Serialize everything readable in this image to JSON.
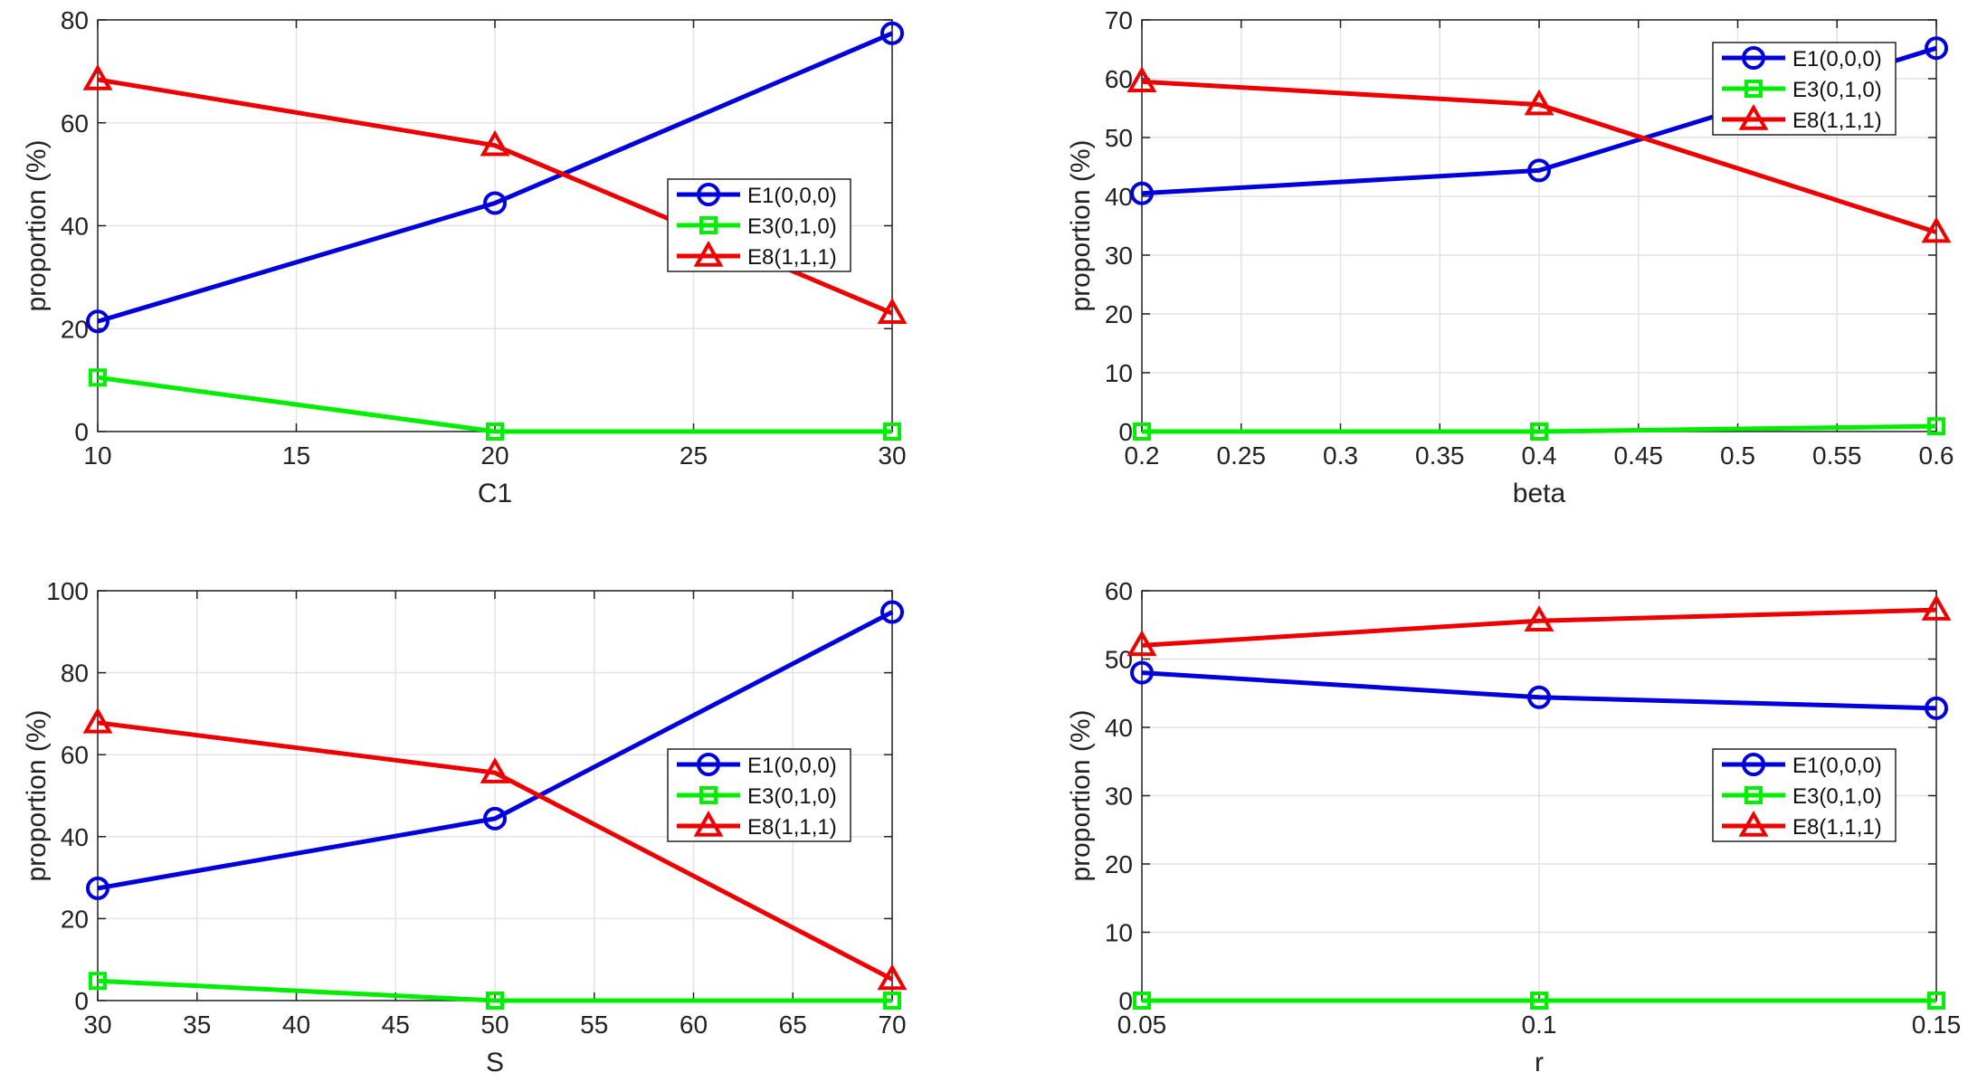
{
  "colors": {
    "E1": "#0000dd",
    "E3": "#00ee00",
    "E8": "#ee0000",
    "grid": "#e3e3e3",
    "axis": "#222222"
  },
  "chart_data": [
    {
      "type": "line",
      "xlabel": "C1",
      "ylabel": "proportion (%)",
      "x": [
        10,
        20,
        30
      ],
      "xlim": [
        10,
        30
      ],
      "ylim": [
        0,
        80
      ],
      "xticks": [
        10,
        15,
        20,
        25,
        30
      ],
      "xtick_labels": [
        "10",
        "15",
        "20",
        "25",
        "30"
      ],
      "yticks": [
        0,
        20,
        40,
        60,
        80
      ],
      "ytick_labels": [
        "0",
        "20",
        "40",
        "60",
        "80"
      ],
      "legend_position": "middle-right",
      "grid": true,
      "series": [
        {
          "name": "E1(0,0,0)",
          "key": "E1",
          "marker": "circle",
          "values": [
            21.4,
            44.4,
            77.4
          ]
        },
        {
          "name": "E3(0,1,0)",
          "key": "E3",
          "marker": "square",
          "values": [
            10.5,
            0,
            0
          ]
        },
        {
          "name": "E8(1,1,1)",
          "key": "E8",
          "marker": "triangle",
          "values": [
            68.4,
            55.6,
            23.0
          ]
        }
      ]
    },
    {
      "type": "line",
      "xlabel": "beta",
      "ylabel": "proportion (%)",
      "x": [
        0.2,
        0.4,
        0.6
      ],
      "xlim": [
        0.2,
        0.6
      ],
      "ylim": [
        0,
        70
      ],
      "xticks": [
        0.2,
        0.25,
        0.3,
        0.35,
        0.4,
        0.45,
        0.5,
        0.55,
        0.6
      ],
      "xtick_labels": [
        "0.2",
        "0.25",
        "0.3",
        "0.35",
        "0.4",
        "0.45",
        "0.5",
        "0.55",
        "0.6"
      ],
      "yticks": [
        0,
        10,
        20,
        30,
        40,
        50,
        60,
        70
      ],
      "ytick_labels": [
        "0",
        "10",
        "20",
        "30",
        "40",
        "50",
        "60",
        "70"
      ],
      "legend_position": "top-right",
      "grid": true,
      "series": [
        {
          "name": "E1(0,0,0)",
          "key": "E1",
          "marker": "circle",
          "values": [
            40.5,
            44.4,
            65.2
          ]
        },
        {
          "name": "E3(0,1,0)",
          "key": "E3",
          "marker": "square",
          "values": [
            0,
            0,
            0.9
          ]
        },
        {
          "name": "E8(1,1,1)",
          "key": "E8",
          "marker": "triangle",
          "values": [
            59.5,
            55.6,
            33.9
          ]
        }
      ]
    },
    {
      "type": "line",
      "xlabel": "S",
      "ylabel": "proportion (%)",
      "x": [
        30,
        50,
        70
      ],
      "xlim": [
        30,
        70
      ],
      "ylim": [
        0,
        100
      ],
      "xticks": [
        30,
        35,
        40,
        45,
        50,
        55,
        60,
        65,
        70
      ],
      "xtick_labels": [
        "30",
        "35",
        "40",
        "45",
        "50",
        "55",
        "60",
        "65",
        "70"
      ],
      "yticks": [
        0,
        20,
        40,
        60,
        80,
        100
      ],
      "ytick_labels": [
        "0",
        "20",
        "40",
        "60",
        "80",
        "100"
      ],
      "legend_position": "middle-right",
      "grid": true,
      "series": [
        {
          "name": "E1(0,0,0)",
          "key": "E1",
          "marker": "circle",
          "values": [
            27.4,
            44.4,
            94.8
          ]
        },
        {
          "name": "E3(0,1,0)",
          "key": "E3",
          "marker": "square",
          "values": [
            4.8,
            0,
            0
          ]
        },
        {
          "name": "E8(1,1,1)",
          "key": "E8",
          "marker": "triangle",
          "values": [
            67.8,
            55.6,
            5.2
          ]
        }
      ]
    },
    {
      "type": "line",
      "xlabel": "r",
      "ylabel": "proportion (%)",
      "x": [
        0.05,
        0.1,
        0.15
      ],
      "xlim": [
        0.05,
        0.15
      ],
      "ylim": [
        0,
        60
      ],
      "xticks": [
        0.05,
        0.1,
        0.15
      ],
      "xtick_labels": [
        "0.05",
        "0.1",
        "0.15"
      ],
      "yticks": [
        0,
        10,
        20,
        30,
        40,
        50,
        60
      ],
      "ytick_labels": [
        "0",
        "10",
        "20",
        "30",
        "40",
        "50",
        "60"
      ],
      "legend_position": "middle-right",
      "grid": true,
      "series": [
        {
          "name": "E1(0,0,0)",
          "key": "E1",
          "marker": "circle",
          "values": [
            48.0,
            44.4,
            42.8
          ]
        },
        {
          "name": "E3(0,1,0)",
          "key": "E3",
          "marker": "square",
          "values": [
            0,
            0,
            0
          ]
        },
        {
          "name": "E8(1,1,1)",
          "key": "E8",
          "marker": "triangle",
          "values": [
            52.0,
            55.6,
            57.2
          ]
        }
      ]
    }
  ]
}
